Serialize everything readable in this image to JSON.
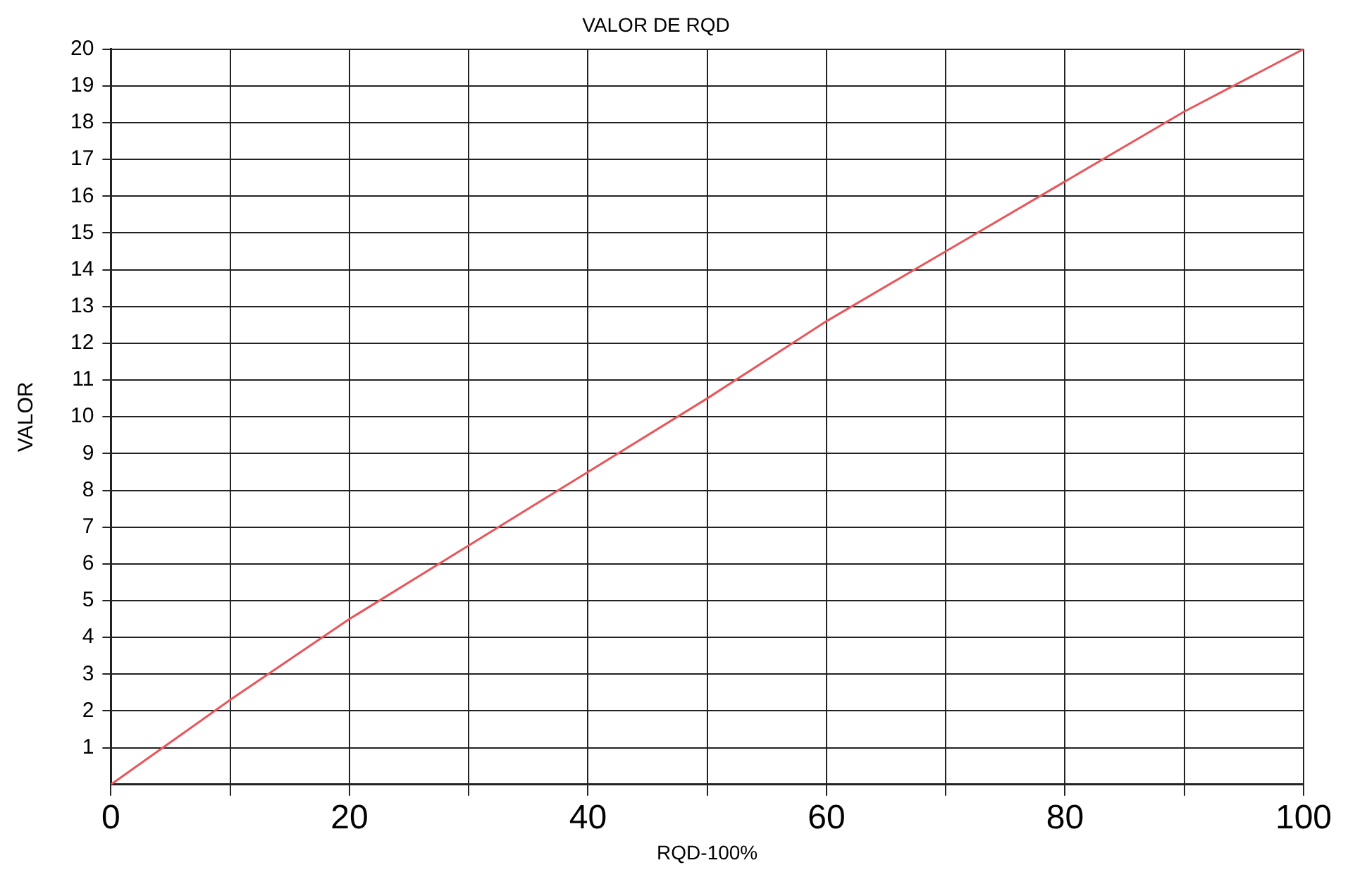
{
  "chart_data": {
    "type": "line",
    "title": "VALOR DE RQD",
    "xlabel": "RQD-100%",
    "ylabel": "VALOR",
    "x": [
      0,
      10,
      20,
      30,
      40,
      50,
      60,
      70,
      80,
      90,
      100
    ],
    "series": [
      {
        "color": "#e8565a",
        "values": [
          0,
          2.3,
          4.5,
          6.5,
          8.5,
          10.5,
          12.6,
          14.5,
          16.4,
          18.3,
          20
        ]
      }
    ],
    "xlim": [
      0,
      100
    ],
    "xticks": [
      0,
      {
        "value": 10,
        "label": null
      },
      20,
      {
        "value": 30,
        "label": null
      },
      40,
      {
        "value": 50,
        "label": null
      },
      60,
      {
        "value": 70,
        "label": null
      },
      80,
      {
        "value": 90,
        "label": null
      },
      100
    ],
    "ylim": [
      0,
      20
    ],
    "yticks": [
      1,
      2,
      3,
      4,
      5,
      6,
      7,
      8,
      9,
      10,
      11,
      12,
      13,
      14,
      15,
      16,
      17,
      18,
      19,
      20
    ],
    "grid": true,
    "legend": false,
    "marker": "none",
    "line_style": "solid"
  }
}
